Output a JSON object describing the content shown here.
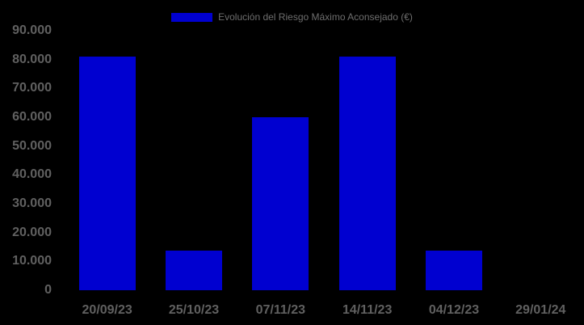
{
  "chart": {
    "colors": {
      "background": "#000000",
      "bar": "#0000d0",
      "axis_label": "#606060",
      "legend_text": "#6e6e6e"
    }
  },
  "chart_data": {
    "type": "bar",
    "title": "",
    "xlabel": "",
    "ylabel": "",
    "legend": [
      "Evolución del Riesgo Máximo Aconsejado (€)"
    ],
    "legend_position": "top-center",
    "grid": false,
    "categories": [
      "20/09/23",
      "25/10/23",
      "07/11/23",
      "14/11/23",
      "04/12/23",
      "29/01/24"
    ],
    "values": [
      81000,
      13700,
      60000,
      81000,
      13700,
      0
    ],
    "ylim": [
      0,
      90000
    ],
    "y_ticks": [
      {
        "value": 90000,
        "label": "90.000"
      },
      {
        "value": 80000,
        "label": "80.000"
      },
      {
        "value": 70000,
        "label": "70.000"
      },
      {
        "value": 60000,
        "label": "60.000"
      },
      {
        "value": 50000,
        "label": "50.000"
      },
      {
        "value": 40000,
        "label": "40.000"
      },
      {
        "value": 30000,
        "label": "30.000"
      },
      {
        "value": 20000,
        "label": "20.000"
      },
      {
        "value": 10000,
        "label": "10.000"
      },
      {
        "value": 0,
        "label": "0"
      }
    ]
  }
}
